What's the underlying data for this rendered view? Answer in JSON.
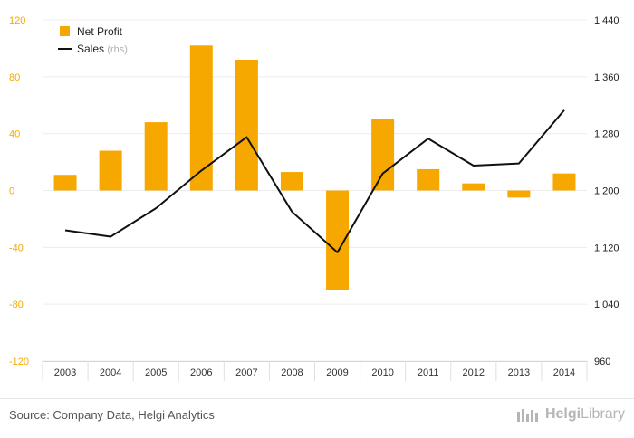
{
  "chart_data": {
    "type": "bar+line",
    "categories": [
      "2003",
      "2004",
      "2005",
      "2006",
      "2007",
      "2008",
      "2009",
      "2010",
      "2011",
      "2012",
      "2013",
      "2014"
    ],
    "series": [
      {
        "name": "Net Profit",
        "axis": "left",
        "type": "bar",
        "values": [
          11,
          28,
          48,
          102,
          92,
          13,
          -70,
          50,
          15,
          5,
          -5,
          12
        ]
      },
      {
        "name": "Sales",
        "axis": "right",
        "type": "line",
        "values": [
          1144,
          1135,
          1175,
          1228,
          1275,
          1170,
          1113,
          1224,
          1273,
          1235,
          1238,
          1313
        ]
      }
    ],
    "y_left": {
      "min": -120,
      "max": 120,
      "ticks": [
        "120",
        "80",
        "40",
        "0",
        "-40",
        "-80",
        "-120"
      ]
    },
    "y_right": {
      "min": 960,
      "max": 1440,
      "ticks": [
        "1 440",
        "1 360",
        "1 280",
        "1 200",
        "1 120",
        "1 040",
        "960"
      ]
    },
    "legend": {
      "items": [
        {
          "label": "Net Profit",
          "suffix": ""
        },
        {
          "label": "Sales",
          "suffix": "(rhs)"
        }
      ],
      "position": "top-left"
    },
    "colors": {
      "bar": "#f7a800",
      "line": "#111111",
      "left_axis_text": "#f7a800",
      "right_axis_text": "#222222"
    }
  },
  "footer": {
    "source": "Source: Company Data, Helgi Analytics",
    "brand_part1": "Helgi",
    "brand_part2": "Library"
  }
}
